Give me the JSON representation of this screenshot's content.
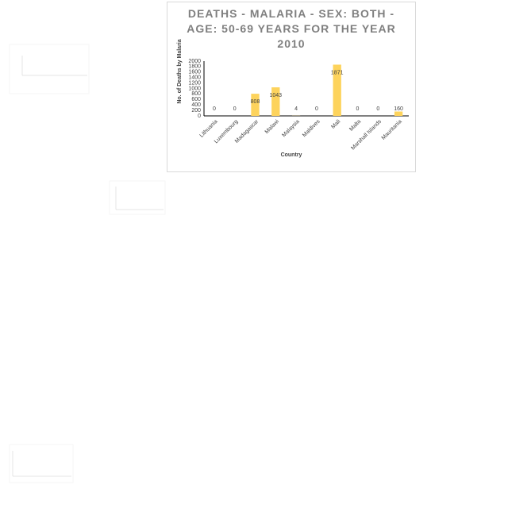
{
  "chart_data": {
    "type": "bar",
    "title": "DEATHS - MALARIA - SEX: BOTH - AGE: 50-69 YEARS FOR THE YEAR 2010",
    "x_label": "Country",
    "y_label": "No. of Deaths by Malaria",
    "categories": [
      "Lithuania",
      "Luxembourg",
      "Madagascar",
      "Malawi",
      "Malaysia",
      "Maldives",
      "Mali",
      "Malta",
      "Marshall Islands",
      "Mauritania"
    ],
    "values": [
      0,
      0,
      808,
      1043,
      4,
      0,
      1871,
      0,
      0,
      160
    ],
    "color": "#fdd35c",
    "ylim": [
      0,
      2000
    ],
    "yticks": [
      0,
      200,
      400,
      600,
      800,
      1000,
      1200,
      1400,
      1600,
      1800,
      2000
    ],
    "grid": false
  }
}
